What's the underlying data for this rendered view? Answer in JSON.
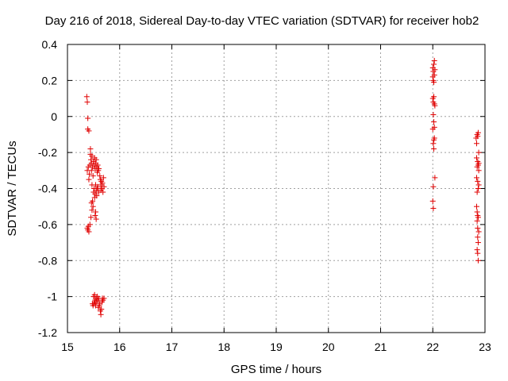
{
  "chart_data": {
    "type": "scatter",
    "title": "Day 216 of 2018, Sidereal Day-to-day VTEC variation (SDTVAR) for receiver hob2",
    "xlabel": "GPS time / hours",
    "ylabel": "SDTVAR / TECUs",
    "xlim": [
      15,
      23
    ],
    "ylim": [
      -1.2,
      0.4
    ],
    "xticks": [
      15,
      16,
      17,
      18,
      19,
      20,
      21,
      22,
      23
    ],
    "yticks": [
      0.4,
      0.2,
      0,
      -0.2,
      -0.4,
      -0.6,
      -0.8,
      -1,
      -1.2
    ],
    "xtick_labels": [
      "15",
      "16",
      "17",
      "18",
      "19",
      "20",
      "21",
      "22",
      "23"
    ],
    "ytick_labels": [
      "0.4",
      "0.2",
      "0",
      "-0.2",
      "-0.4",
      "-0.6",
      "-0.8",
      "-1",
      "-1.2"
    ],
    "grid": true,
    "marker": "+",
    "series": [
      {
        "name": "SDTVAR",
        "color": "#e00000",
        "points": [
          [
            15.37,
            0.11
          ],
          [
            15.38,
            0.08
          ],
          [
            15.39,
            -0.01
          ],
          [
            15.39,
            -0.07
          ],
          [
            15.41,
            -0.08
          ],
          [
            15.38,
            -0.3
          ],
          [
            15.4,
            -0.28
          ],
          [
            15.42,
            -0.32
          ],
          [
            15.41,
            -0.35
          ],
          [
            15.43,
            -0.27
          ],
          [
            15.44,
            -0.18
          ],
          [
            15.44,
            -0.21
          ],
          [
            15.45,
            -0.24
          ],
          [
            15.46,
            -0.26
          ],
          [
            15.47,
            -0.22
          ],
          [
            15.46,
            -0.3
          ],
          [
            15.48,
            -0.28
          ],
          [
            15.49,
            -0.33
          ],
          [
            15.47,
            -0.38
          ],
          [
            15.5,
            -0.25
          ],
          [
            15.51,
            -0.27
          ],
          [
            15.52,
            -0.23
          ],
          [
            15.53,
            -0.29
          ],
          [
            15.54,
            -0.26
          ],
          [
            15.55,
            -0.24
          ],
          [
            15.56,
            -0.28
          ],
          [
            15.57,
            -0.31
          ],
          [
            15.58,
            -0.27
          ],
          [
            15.59,
            -0.3
          ],
          [
            15.6,
            -0.29
          ],
          [
            15.5,
            -0.42
          ],
          [
            15.51,
            -0.4
          ],
          [
            15.52,
            -0.45
          ],
          [
            15.53,
            -0.43
          ],
          [
            15.54,
            -0.38
          ],
          [
            15.55,
            -0.41
          ],
          [
            15.56,
            -0.44
          ],
          [
            15.57,
            -0.4
          ],
          [
            15.58,
            -0.39
          ],
          [
            15.6,
            -0.42
          ],
          [
            15.48,
            -0.47
          ],
          [
            15.49,
            -0.5
          ],
          [
            15.47,
            -0.52
          ],
          [
            15.46,
            -0.48
          ],
          [
            15.45,
            -0.56
          ],
          [
            15.53,
            -0.55
          ],
          [
            15.55,
            -0.57
          ],
          [
            15.54,
            -0.53
          ],
          [
            15.38,
            -0.62
          ],
          [
            15.4,
            -0.61
          ],
          [
            15.41,
            -0.64
          ],
          [
            15.39,
            -0.63
          ],
          [
            15.43,
            -0.6
          ],
          [
            15.62,
            -0.33
          ],
          [
            15.63,
            -0.35
          ],
          [
            15.64,
            -0.38
          ],
          [
            15.65,
            -0.36
          ],
          [
            15.66,
            -0.4
          ],
          [
            15.67,
            -0.37
          ],
          [
            15.68,
            -0.42
          ],
          [
            15.69,
            -0.34
          ],
          [
            15.7,
            -0.39
          ],
          [
            15.64,
            -0.41
          ],
          [
            15.5,
            -1.0
          ],
          [
            15.51,
            -1.04
          ],
          [
            15.52,
            -0.99
          ],
          [
            15.53,
            -1.02
          ],
          [
            15.54,
            -1.05
          ],
          [
            15.55,
            -1.01
          ],
          [
            15.56,
            -1.03
          ],
          [
            15.57,
            -1.0
          ],
          [
            15.58,
            -1.02
          ],
          [
            15.59,
            -1.06
          ],
          [
            15.6,
            -1.01
          ],
          [
            15.61,
            -1.05
          ],
          [
            15.62,
            -1.04
          ],
          [
            15.63,
            -1.08
          ],
          [
            15.64,
            -1.1
          ],
          [
            15.65,
            -1.07
          ],
          [
            15.66,
            -1.03
          ],
          [
            15.67,
            -1.01
          ],
          [
            15.68,
            -1.02
          ],
          [
            15.7,
            -1.01
          ],
          [
            15.49,
            -1.05
          ],
          [
            15.48,
            -1.04
          ],
          [
            15.52,
            -1.03
          ],
          [
            22.0,
            0.27
          ],
          [
            22.01,
            0.25
          ],
          [
            22.02,
            0.29
          ],
          [
            22.03,
            0.31
          ],
          [
            22.0,
            0.22
          ],
          [
            22.01,
            0.2
          ],
          [
            22.02,
            0.19
          ],
          [
            22.03,
            0.23
          ],
          [
            22.04,
            0.26
          ],
          [
            22.0,
            0.1
          ],
          [
            22.01,
            0.08
          ],
          [
            22.02,
            0.11
          ],
          [
            22.03,
            0.07
          ],
          [
            22.04,
            0.06
          ],
          [
            22.01,
            0.01
          ],
          [
            22.02,
            -0.03
          ],
          [
            22.0,
            -0.07
          ],
          [
            22.03,
            -0.06
          ],
          [
            22.02,
            -0.13
          ],
          [
            22.01,
            -0.15
          ],
          [
            22.03,
            -0.12
          ],
          [
            22.02,
            -0.18
          ],
          [
            22.04,
            -0.34
          ],
          [
            22.01,
            -0.39
          ],
          [
            22.0,
            -0.47
          ],
          [
            22.01,
            -0.51
          ],
          [
            22.83,
            -0.12
          ],
          [
            22.84,
            -0.15
          ],
          [
            22.85,
            -0.1
          ],
          [
            22.86,
            -0.11
          ],
          [
            22.87,
            -0.09
          ],
          [
            22.88,
            -0.2
          ],
          [
            22.84,
            -0.23
          ],
          [
            22.86,
            -0.25
          ],
          [
            22.85,
            -0.28
          ],
          [
            22.87,
            -0.27
          ],
          [
            22.88,
            -0.3
          ],
          [
            22.84,
            -0.34
          ],
          [
            22.86,
            -0.36
          ],
          [
            22.87,
            -0.4
          ],
          [
            22.85,
            -0.42
          ],
          [
            22.88,
            -0.38
          ],
          [
            22.84,
            -0.5
          ],
          [
            22.85,
            -0.53
          ],
          [
            22.86,
            -0.55
          ],
          [
            22.87,
            -0.56
          ],
          [
            22.85,
            -0.58
          ],
          [
            22.86,
            -0.62
          ],
          [
            22.88,
            -0.64
          ],
          [
            22.86,
            -0.67
          ],
          [
            22.87,
            -0.7
          ],
          [
            22.85,
            -0.74
          ],
          [
            22.86,
            -0.76
          ],
          [
            22.87,
            -0.8
          ],
          [
            22.88,
            -0.26
          ]
        ]
      }
    ]
  }
}
